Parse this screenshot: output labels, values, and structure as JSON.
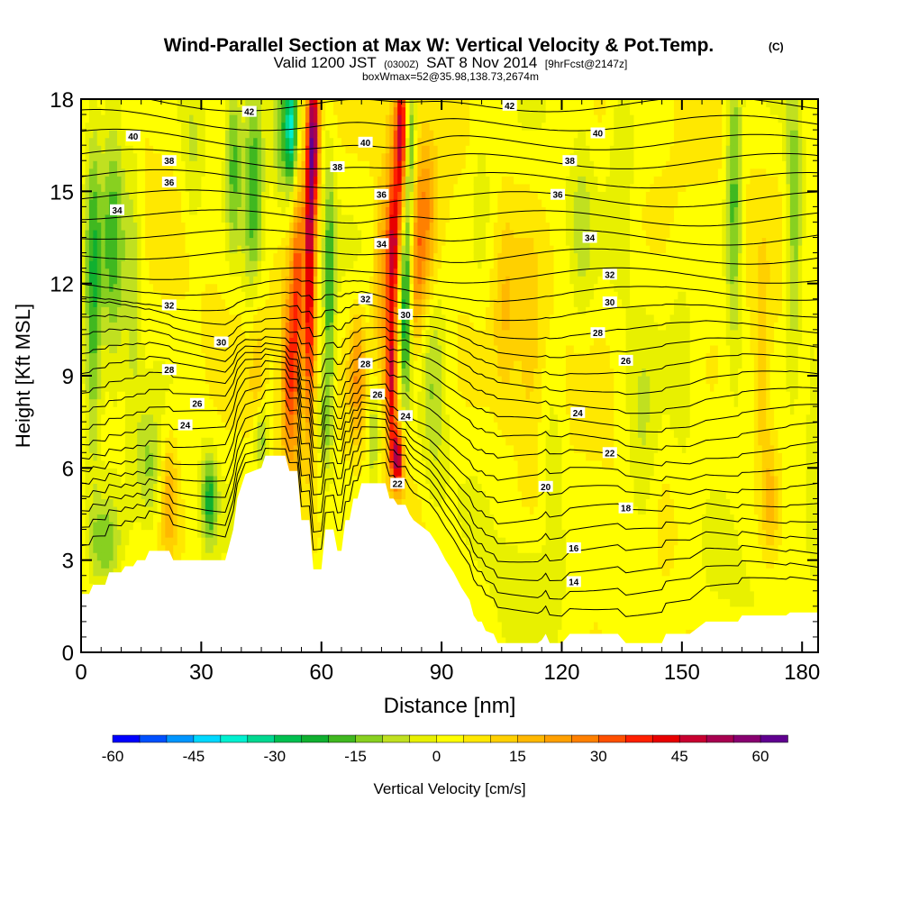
{
  "chart_data": {
    "type": "heatmap",
    "title": "Wind-Parallel Section at Max W: Vertical Velocity & Pot.Temp.",
    "title_mark": "(C)",
    "subtitle_prefix": "Valid 1200 JST",
    "subtitle_small": "(0300Z)",
    "subtitle_main": "SAT 8 Nov 2014",
    "subtitle_fcst": "[9hrFcst@2147z]",
    "subtitle2": "boxWmax=52@35.98,138.73,2674m",
    "xlabel": "Distance [nm]",
    "ylabel": "Height [Kft MSL]",
    "xlim": [
      0,
      184
    ],
    "ylim": [
      0,
      18
    ],
    "xticks": [
      "0",
      "30",
      "60",
      "90",
      "120",
      "150",
      "180"
    ],
    "yticks": [
      "0",
      "3",
      "6",
      "9",
      "12",
      "15",
      "18"
    ],
    "colorbar": {
      "label": "Vertical Velocity [cm/s]",
      "range": [
        -60,
        65
      ],
      "ticks": [
        "-60",
        "-45",
        "-30",
        "-15",
        "0",
        "15",
        "30",
        "45",
        "60"
      ],
      "colors": [
        "#0000ff",
        "#0050ff",
        "#0096ff",
        "#00d8ff",
        "#00f0d0",
        "#00d890",
        "#00c050",
        "#10b030",
        "#40b820",
        "#88d020",
        "#c0e020",
        "#e8f000",
        "#ffff00",
        "#ffe800",
        "#ffd000",
        "#ffb800",
        "#ffa000",
        "#ff8000",
        "#ff5000",
        "#ff2000",
        "#e80000",
        "#c80030",
        "#a80050",
        "#880070",
        "#600090"
      ]
    },
    "terrain": [
      [
        0,
        1.9
      ],
      [
        2,
        1.9
      ],
      [
        3,
        2.2
      ],
      [
        6,
        2.2
      ],
      [
        7,
        2.6
      ],
      [
        10,
        2.6
      ],
      [
        11,
        2.8
      ],
      [
        13,
        2.8
      ],
      [
        14,
        3.0
      ],
      [
        16,
        3.0
      ],
      [
        17,
        3.3
      ],
      [
        22,
        3.3
      ],
      [
        23,
        3.0
      ],
      [
        36,
        3.0
      ],
      [
        37,
        3.5
      ],
      [
        38,
        4.0
      ],
      [
        39,
        5.0
      ],
      [
        41,
        5.8
      ],
      [
        43,
        5.9
      ],
      [
        45,
        6.0
      ],
      [
        46,
        6.4
      ],
      [
        51,
        6.4
      ],
      [
        52,
        5.9
      ],
      [
        54,
        5.9
      ],
      [
        55,
        4.3
      ],
      [
        57,
        4.3
      ],
      [
        58,
        2.7
      ],
      [
        60,
        2.7
      ],
      [
        61,
        4.0
      ],
      [
        63,
        4.0
      ],
      [
        64,
        3.3
      ],
      [
        65,
        3.3
      ],
      [
        66,
        4.3
      ],
      [
        67,
        4.3
      ],
      [
        68,
        5.0
      ],
      [
        69,
        5.0
      ],
      [
        70,
        5.5
      ],
      [
        76,
        5.5
      ],
      [
        77,
        5.0
      ],
      [
        78,
        5.0
      ],
      [
        79,
        4.8
      ],
      [
        81,
        4.8
      ],
      [
        82,
        4.5
      ],
      [
        83,
        4.3
      ],
      [
        85,
        4.1
      ],
      [
        87,
        3.9
      ],
      [
        89,
        3.5
      ],
      [
        91,
        3.0
      ],
      [
        93,
        2.6
      ],
      [
        95,
        2.1
      ],
      [
        97,
        1.7
      ],
      [
        98,
        1.2
      ],
      [
        99,
        1.0
      ],
      [
        100,
        1.0
      ],
      [
        101,
        0.7
      ],
      [
        103,
        0.6
      ],
      [
        104,
        0.3
      ],
      [
        114,
        0.3
      ],
      [
        115,
        0.4
      ],
      [
        116,
        0.6
      ],
      [
        117,
        0.3
      ],
      [
        119,
        0.3
      ],
      [
        120,
        0.3
      ],
      [
        122,
        0.6
      ],
      [
        134,
        0.6
      ],
      [
        136,
        0.3
      ],
      [
        145,
        0.3
      ],
      [
        146,
        0.6
      ],
      [
        152,
        0.6
      ],
      [
        156,
        1.0
      ],
      [
        160,
        1.0
      ],
      [
        164,
        1.0
      ],
      [
        165,
        1.2
      ],
      [
        176,
        1.2
      ],
      [
        177,
        1.3
      ],
      [
        184,
        1.3
      ]
    ],
    "w_features": [
      {
        "x": 3,
        "z": 12,
        "dx": 2,
        "dz": 6,
        "w": -22
      },
      {
        "x": 8,
        "z": 14,
        "dx": 3,
        "dz": 5,
        "w": -20
      },
      {
        "x": 13,
        "z": 12,
        "dx": 2,
        "dz": 6,
        "w": -10
      },
      {
        "x": 6,
        "z": 3.5,
        "dx": 4,
        "dz": 1.5,
        "w": -18
      },
      {
        "x": 17,
        "z": 6,
        "dx": 3,
        "dz": 2,
        "w": -14
      },
      {
        "x": 22,
        "z": 5,
        "dx": 2,
        "dz": 2,
        "w": 15
      },
      {
        "x": 32,
        "z": 5,
        "dx": 2,
        "dz": 1.5,
        "w": -24
      },
      {
        "x": 28,
        "z": 16,
        "dx": 3,
        "dz": 3,
        "w": -10
      },
      {
        "x": 38,
        "z": 16,
        "dx": 2,
        "dz": 3,
        "w": -20
      },
      {
        "x": 43,
        "z": 15,
        "dx": 2.5,
        "dz": 4,
        "w": -22
      },
      {
        "x": 44,
        "z": 9,
        "dx": 2,
        "dz": 3,
        "w": 10
      },
      {
        "x": 45,
        "z": 7,
        "dx": 2,
        "dz": 1.2,
        "w": -20
      },
      {
        "x": 52,
        "z": 9,
        "dx": 2,
        "dz": 3,
        "w": 30
      },
      {
        "x": 54,
        "z": 12,
        "dx": 1.5,
        "dz": 4,
        "w": 25
      },
      {
        "x": 50,
        "z": 17,
        "dx": 2,
        "dz": 2.5,
        "w": -15
      },
      {
        "x": 52.5,
        "z": 17,
        "dx": 1.5,
        "dz": 2,
        "w": -35
      },
      {
        "x": 58,
        "z": 17,
        "dx": 1.5,
        "dz": 2.5,
        "w": 50
      },
      {
        "x": 57,
        "z": 14,
        "dx": 1.5,
        "dz": 3,
        "w": 35
      },
      {
        "x": 57,
        "z": 10,
        "dx": 1.5,
        "dz": 3,
        "w": 30
      },
      {
        "x": 62,
        "z": 12,
        "dx": 1.5,
        "dz": 4,
        "w": -22
      },
      {
        "x": 61,
        "z": 7.5,
        "dx": 2,
        "dz": 2,
        "w": -15
      },
      {
        "x": 69,
        "z": 9,
        "dx": 2,
        "dz": 2,
        "w": 20
      },
      {
        "x": 73,
        "z": 7,
        "dx": 1.5,
        "dz": 1.5,
        "w": -15
      },
      {
        "x": 75,
        "z": 12,
        "dx": 2,
        "dz": 3,
        "w": 18
      },
      {
        "x": 78,
        "z": 15,
        "dx": 2,
        "dz": 3,
        "w": 15
      },
      {
        "x": 80,
        "z": 17,
        "dx": 1.5,
        "dz": 2.5,
        "w": 45
      },
      {
        "x": 78,
        "z": 13,
        "dx": 1.5,
        "dz": 2,
        "w": 30
      },
      {
        "x": 77.5,
        "z": 9,
        "dx": 1.5,
        "dz": 2.5,
        "w": 45
      },
      {
        "x": 79,
        "z": 6.3,
        "dx": 1.5,
        "dz": 1,
        "w": 45
      },
      {
        "x": 82,
        "z": 16,
        "dx": 1.5,
        "dz": 3,
        "w": -25
      },
      {
        "x": 81,
        "z": 11.5,
        "dx": 1.5,
        "dz": 3,
        "w": -30
      },
      {
        "x": 83.5,
        "z": 12,
        "dx": 2,
        "dz": 3,
        "w": 15
      },
      {
        "x": 86,
        "z": 14,
        "dx": 3,
        "dz": 3,
        "w": 20
      },
      {
        "x": 88,
        "z": 9,
        "dx": 3,
        "dz": 4,
        "w": -12
      },
      {
        "x": 100,
        "z": 15,
        "dx": 3,
        "dz": 4,
        "w": -6
      },
      {
        "x": 106,
        "z": 11,
        "dx": 3,
        "dz": 3,
        "w": 10
      },
      {
        "x": 112,
        "z": 10,
        "dx": 3,
        "dz": 3,
        "w": 10
      },
      {
        "x": 118,
        "z": 6,
        "dx": 3,
        "dz": 3,
        "w": -8
      },
      {
        "x": 125,
        "z": 14,
        "dx": 3,
        "dz": 4,
        "w": -8
      },
      {
        "x": 135,
        "z": 16,
        "dx": 3,
        "dz": 4,
        "w": -8
      },
      {
        "x": 140,
        "z": 6,
        "dx": 4,
        "dz": 4,
        "w": -10
      },
      {
        "x": 150,
        "z": 9,
        "dx": 3,
        "dz": 3,
        "w": -6
      },
      {
        "x": 163,
        "z": 15,
        "dx": 2,
        "dz": 5,
        "w": -22
      },
      {
        "x": 170,
        "z": 9,
        "dx": 2,
        "dz": 3,
        "w": 12
      },
      {
        "x": 172,
        "z": 5,
        "dx": 2,
        "dz": 2,
        "w": 12
      },
      {
        "x": 178,
        "z": 14,
        "dx": 2,
        "dz": 5,
        "w": -18
      },
      {
        "x": 183,
        "z": 8,
        "dx": 2,
        "dz": 4,
        "w": -10
      },
      {
        "x": 110,
        "z": 2,
        "dx": 10,
        "dz": 2,
        "w": -6
      },
      {
        "x": 160,
        "z": 2,
        "dx": 10,
        "dz": 2,
        "w": -6
      }
    ],
    "theta_levels": [
      14,
      15,
      16,
      17,
      18,
      19,
      20,
      21,
      22,
      23,
      24,
      25,
      26,
      27,
      28,
      29,
      30,
      31,
      32,
      33,
      34,
      35,
      36,
      37,
      38,
      39,
      40,
      41,
      42
    ],
    "contour_labels": [
      {
        "text": "42",
        "x": 42,
        "z": 17.6
      },
      {
        "text": "40",
        "x": 13,
        "z": 16.8
      },
      {
        "text": "38",
        "x": 22,
        "z": 16.0
      },
      {
        "text": "36",
        "x": 22,
        "z": 15.3
      },
      {
        "text": "34",
        "x": 9,
        "z": 14.4
      },
      {
        "text": "32",
        "x": 22,
        "z": 11.3
      },
      {
        "text": "30",
        "x": 35,
        "z": 10.1
      },
      {
        "text": "28",
        "x": 22,
        "z": 9.2
      },
      {
        "text": "26",
        "x": 29,
        "z": 8.1
      },
      {
        "text": "24",
        "x": 26,
        "z": 7.4
      },
      {
        "text": "40",
        "x": 71,
        "z": 16.6
      },
      {
        "text": "38",
        "x": 64,
        "z": 15.8
      },
      {
        "text": "36",
        "x": 75,
        "z": 14.9
      },
      {
        "text": "34",
        "x": 75,
        "z": 13.3
      },
      {
        "text": "32",
        "x": 71,
        "z": 11.5
      },
      {
        "text": "30",
        "x": 81,
        "z": 11.0
      },
      {
        "text": "28",
        "x": 71,
        "z": 9.4
      },
      {
        "text": "26",
        "x": 74,
        "z": 8.4
      },
      {
        "text": "24",
        "x": 81,
        "z": 7.7
      },
      {
        "text": "22",
        "x": 79,
        "z": 5.5
      },
      {
        "text": "42",
        "x": 107,
        "z": 17.8
      },
      {
        "text": "40",
        "x": 129,
        "z": 16.9
      },
      {
        "text": "38",
        "x": 122,
        "z": 16.0
      },
      {
        "text": "36",
        "x": 119,
        "z": 14.9
      },
      {
        "text": "34",
        "x": 127,
        "z": 13.5
      },
      {
        "text": "32",
        "x": 132,
        "z": 12.3
      },
      {
        "text": "30",
        "x": 132,
        "z": 11.4
      },
      {
        "text": "28",
        "x": 129,
        "z": 10.4
      },
      {
        "text": "26",
        "x": 136,
        "z": 9.5
      },
      {
        "text": "24",
        "x": 124,
        "z": 7.8
      },
      {
        "text": "22",
        "x": 132,
        "z": 6.5
      },
      {
        "text": "20",
        "x": 116,
        "z": 5.4
      },
      {
        "text": "18",
        "x": 136,
        "z": 4.7
      },
      {
        "text": "16",
        "x": 123,
        "z": 3.4
      },
      {
        "text": "14",
        "x": 123,
        "z": 2.3
      }
    ]
  }
}
